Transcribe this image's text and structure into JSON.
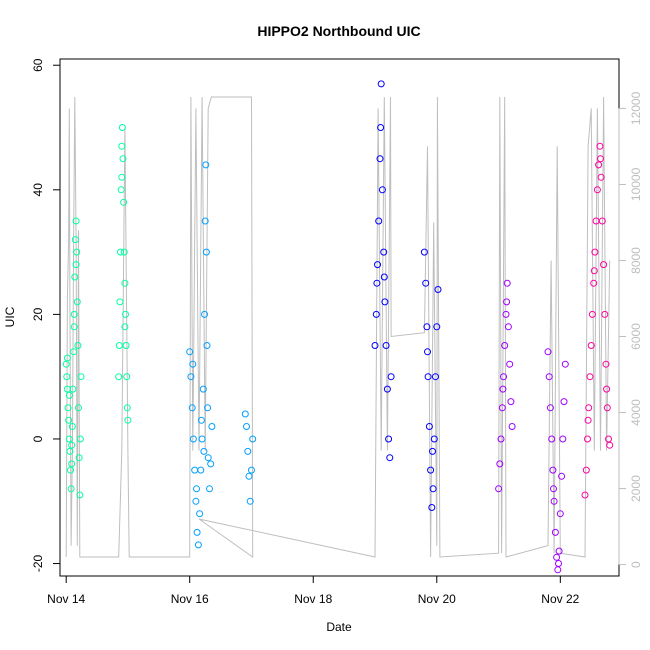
{
  "chart_data": {
    "type": "scatter",
    "title": "HIPPO2 Northbound UIC",
    "xlabel": "Date",
    "ylabel": "UIC",
    "x_unit": "days (Nov 2009)",
    "xlim": [
      13.9,
      22.95
    ],
    "ylim": [
      -22,
      61
    ],
    "x_ticks": [
      {
        "value": 14,
        "label": "Nov 14"
      },
      {
        "value": 16,
        "label": "Nov 16"
      },
      {
        "value": 18,
        "label": "Nov 18"
      },
      {
        "value": 20,
        "label": "Nov 20"
      },
      {
        "value": 22,
        "label": "Nov 22"
      }
    ],
    "y_ticks": [
      {
        "value": -20,
        "label": "-20"
      },
      {
        "value": 0,
        "label": "0"
      },
      {
        "value": 20,
        "label": "20"
      },
      {
        "value": 40,
        "label": "40"
      },
      {
        "value": 60,
        "label": "60"
      }
    ],
    "y2_ticks": [
      {
        "value": 0,
        "label": "0"
      },
      {
        "value": 2000,
        "label": "2000"
      },
      {
        "value": 4000,
        "label": "4000"
      },
      {
        "value": 6000,
        "label": "6000"
      },
      {
        "value": 8000,
        "label": "8000"
      },
      {
        "value": 10000,
        "label": "10000"
      },
      {
        "value": 12000,
        "label": "12000"
      }
    ],
    "y2lim": [
      -300,
      13300
    ],
    "altitude_color": "#bebebe",
    "series": [
      {
        "color": "#00ffa0",
        "points": [
          [
            14.0,
            12
          ],
          [
            14.01,
            10
          ],
          [
            14.02,
            8
          ],
          [
            14.03,
            5
          ],
          [
            14.04,
            3
          ],
          [
            14.05,
            0
          ],
          [
            14.06,
            -2
          ],
          [
            14.07,
            -5
          ],
          [
            14.08,
            -8
          ],
          [
            14.09,
            -4
          ],
          [
            14.1,
            2
          ],
          [
            14.11,
            8
          ],
          [
            14.12,
            14
          ],
          [
            14.13,
            20
          ],
          [
            14.14,
            26
          ],
          [
            14.15,
            32
          ],
          [
            14.16,
            35
          ],
          [
            14.17,
            30
          ],
          [
            14.18,
            22
          ],
          [
            14.19,
            15
          ],
          [
            14.2,
            5
          ],
          [
            14.21,
            -3
          ],
          [
            14.22,
            -9
          ],
          [
            14.23,
            0
          ],
          [
            14.24,
            10
          ],
          [
            14.02,
            13
          ],
          [
            14.05,
            7
          ],
          [
            14.09,
            -1
          ],
          [
            14.13,
            18
          ],
          [
            14.16,
            28
          ],
          [
            14.85,
            10
          ],
          [
            14.86,
            15
          ],
          [
            14.87,
            22
          ],
          [
            14.88,
            30
          ],
          [
            14.89,
            40
          ],
          [
            14.9,
            47
          ],
          [
            14.91,
            50
          ],
          [
            14.92,
            45
          ],
          [
            14.93,
            38
          ],
          [
            14.94,
            30
          ],
          [
            14.95,
            25
          ],
          [
            14.96,
            20
          ],
          [
            14.97,
            15
          ],
          [
            14.98,
            10
          ],
          [
            14.99,
            5
          ],
          [
            15.0,
            3
          ],
          [
            14.9,
            42
          ],
          [
            14.95,
            18
          ]
        ]
      },
      {
        "color": "#00a0ff",
        "points": [
          [
            16.0,
            14
          ],
          [
            16.02,
            10
          ],
          [
            16.04,
            5
          ],
          [
            16.06,
            0
          ],
          [
            16.08,
            -5
          ],
          [
            16.1,
            -10
          ],
          [
            16.12,
            -15
          ],
          [
            16.14,
            -17
          ],
          [
            16.16,
            -12
          ],
          [
            16.18,
            -5
          ],
          [
            16.2,
            0
          ],
          [
            16.22,
            8
          ],
          [
            16.24,
            20
          ],
          [
            16.25,
            35
          ],
          [
            16.26,
            44
          ],
          [
            16.27,
            30
          ],
          [
            16.28,
            15
          ],
          [
            16.29,
            5
          ],
          [
            16.3,
            -3
          ],
          [
            16.32,
            -8
          ],
          [
            16.34,
            -4
          ],
          [
            16.36,
            2
          ],
          [
            16.05,
            12
          ],
          [
            16.11,
            -8
          ],
          [
            16.19,
            3
          ],
          [
            16.23,
            -2
          ],
          [
            16.9,
            4
          ],
          [
            16.92,
            2
          ],
          [
            16.94,
            -2
          ],
          [
            16.96,
            -6
          ],
          [
            16.98,
            -10
          ],
          [
            17.0,
            -5
          ],
          [
            17.02,
            0
          ]
        ]
      },
      {
        "color": "#0000ff",
        "points": [
          [
            19.0,
            15
          ],
          [
            19.02,
            20
          ],
          [
            19.04,
            28
          ],
          [
            19.06,
            35
          ],
          [
            19.08,
            45
          ],
          [
            19.1,
            57
          ],
          [
            19.12,
            40
          ],
          [
            19.14,
            30
          ],
          [
            19.16,
            22
          ],
          [
            19.18,
            15
          ],
          [
            19.2,
            8
          ],
          [
            19.22,
            0
          ],
          [
            19.24,
            -3
          ],
          [
            19.26,
            10
          ],
          [
            19.03,
            25
          ],
          [
            19.09,
            50
          ],
          [
            19.15,
            26
          ],
          [
            19.8,
            30
          ],
          [
            19.82,
            25
          ],
          [
            19.84,
            18
          ],
          [
            19.86,
            10
          ],
          [
            19.88,
            2
          ],
          [
            19.9,
            -5
          ],
          [
            19.92,
            -11
          ],
          [
            19.94,
            -8
          ],
          [
            19.96,
            0
          ],
          [
            19.98,
            10
          ],
          [
            20.0,
            18
          ],
          [
            20.02,
            24
          ],
          [
            19.85,
            14
          ],
          [
            19.93,
            -2
          ]
        ]
      },
      {
        "color": "#a000ff",
        "points": [
          [
            21.0,
            -8
          ],
          [
            21.02,
            -4
          ],
          [
            21.04,
            0
          ],
          [
            21.06,
            5
          ],
          [
            21.08,
            10
          ],
          [
            21.1,
            15
          ],
          [
            21.12,
            20
          ],
          [
            21.14,
            25
          ],
          [
            21.16,
            18
          ],
          [
            21.18,
            12
          ],
          [
            21.2,
            6
          ],
          [
            21.22,
            2
          ],
          [
            21.07,
            8
          ],
          [
            21.13,
            22
          ],
          [
            21.8,
            14
          ],
          [
            21.82,
            10
          ],
          [
            21.84,
            5
          ],
          [
            21.86,
            0
          ],
          [
            21.88,
            -5
          ],
          [
            21.9,
            -10
          ],
          [
            21.92,
            -15
          ],
          [
            21.94,
            -19
          ],
          [
            21.96,
            -21
          ],
          [
            21.98,
            -18
          ],
          [
            22.0,
            -12
          ],
          [
            22.02,
            -6
          ],
          [
            22.04,
            0
          ],
          [
            22.06,
            6
          ],
          [
            22.08,
            12
          ],
          [
            21.89,
            -8
          ],
          [
            21.97,
            -20
          ]
        ]
      },
      {
        "color": "#ff00a0",
        "points": [
          [
            22.4,
            -9
          ],
          [
            22.42,
            -5
          ],
          [
            22.44,
            0
          ],
          [
            22.46,
            5
          ],
          [
            22.48,
            10
          ],
          [
            22.5,
            15
          ],
          [
            22.52,
            20
          ],
          [
            22.54,
            25
          ],
          [
            22.56,
            30
          ],
          [
            22.58,
            35
          ],
          [
            22.6,
            40
          ],
          [
            22.62,
            44
          ],
          [
            22.64,
            47
          ],
          [
            22.66,
            42
          ],
          [
            22.68,
            35
          ],
          [
            22.7,
            28
          ],
          [
            22.72,
            20
          ],
          [
            22.74,
            12
          ],
          [
            22.76,
            5
          ],
          [
            22.78,
            0
          ],
          [
            22.8,
            -1
          ],
          [
            22.45,
            3
          ],
          [
            22.55,
            27
          ],
          [
            22.65,
            45
          ],
          [
            22.75,
            8
          ]
        ]
      }
    ],
    "altitude_path": [
      [
        14.0,
        200
      ],
      [
        14.02,
        7000
      ],
      [
        14.04,
        8500
      ],
      [
        14.05,
        12000
      ],
      [
        14.06,
        7000
      ],
      [
        14.08,
        500
      ],
      [
        14.1,
        3000
      ],
      [
        14.12,
        8500
      ],
      [
        14.14,
        12300
      ],
      [
        14.16,
        8500
      ],
      [
        14.18,
        500
      ],
      [
        14.2,
        8800
      ],
      [
        14.22,
        200
      ],
      [
        14.85,
        200
      ],
      [
        14.9,
        3000
      ],
      [
        14.95,
        11500
      ],
      [
        15.0,
        3000
      ],
      [
        15.02,
        200
      ],
      [
        16.0,
        200
      ],
      [
        16.02,
        12300
      ],
      [
        16.05,
        3000
      ],
      [
        16.1,
        12000
      ],
      [
        16.15,
        3000
      ],
      [
        16.2,
        12300
      ],
      [
        16.25,
        3000
      ],
      [
        16.3,
        12000
      ],
      [
        16.35,
        12300
      ],
      [
        17.0,
        12300
      ],
      [
        17.02,
        200
      ],
      [
        16.15,
        1200
      ],
      [
        19.0,
        200
      ],
      [
        19.05,
        12000
      ],
      [
        19.1,
        3000
      ],
      [
        19.15,
        12300
      ],
      [
        19.2,
        3000
      ],
      [
        19.25,
        12300
      ],
      [
        19.26,
        6000
      ],
      [
        19.8,
        6100
      ],
      [
        19.85,
        11000
      ],
      [
        19.9,
        200
      ],
      [
        19.95,
        9000
      ],
      [
        20.0,
        500
      ],
      [
        20.01,
        12300
      ],
      [
        20.05,
        200
      ],
      [
        21.0,
        300
      ],
      [
        21.02,
        12300
      ],
      [
        21.05,
        300
      ],
      [
        21.1,
        12300
      ],
      [
        21.12,
        200
      ],
      [
        21.8,
        500
      ],
      [
        21.85,
        8000
      ],
      [
        21.9,
        300
      ],
      [
        21.95,
        11000
      ],
      [
        22.0,
        300
      ],
      [
        22.4,
        200
      ],
      [
        22.45,
        11000
      ],
      [
        22.5,
        12000
      ],
      [
        22.55,
        3000
      ],
      [
        22.6,
        12000
      ],
      [
        22.65,
        3000
      ],
      [
        22.7,
        12300
      ],
      [
        22.75,
        3000
      ],
      [
        22.8,
        8000
      ]
    ]
  }
}
